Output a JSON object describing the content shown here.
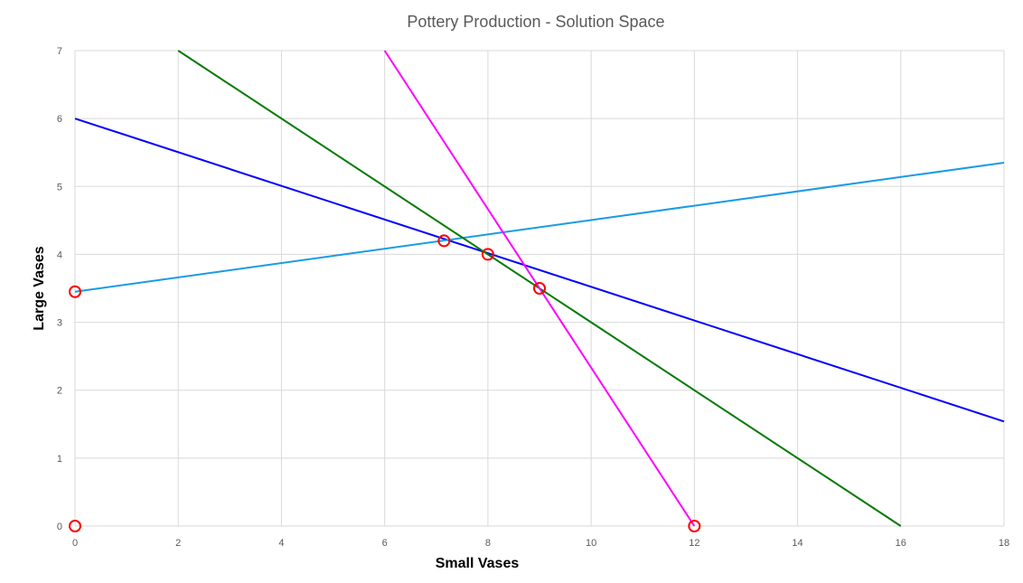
{
  "chart_data": {
    "type": "line",
    "title": "Pottery Production - Solution Space",
    "xlabel": "Small Vases",
    "ylabel": "Large Vases",
    "xlim": [
      0,
      18
    ],
    "ylim": [
      0,
      7
    ],
    "x_ticks": [
      "0",
      "2",
      "4",
      "6",
      "8",
      "10",
      "12",
      "14",
      "16",
      "18"
    ],
    "y_ticks": [
      "0",
      "1",
      "2",
      "3",
      "4",
      "5",
      "6",
      "7"
    ],
    "grid": true,
    "legend": "none",
    "series": [
      {
        "color": "#0000ff",
        "points": [
          [
            0,
            6
          ],
          [
            18,
            1.54
          ]
        ]
      },
      {
        "color": "#1a9be6",
        "points": [
          [
            0,
            3.45
          ],
          [
            18,
            5.35
          ]
        ]
      },
      {
        "color": "#007a00",
        "points": [
          [
            2,
            7
          ],
          [
            16,
            0
          ]
        ]
      },
      {
        "color": "#ff00ff",
        "points": [
          [
            6,
            7
          ],
          [
            12,
            0
          ]
        ]
      }
    ],
    "markers": {
      "color": "#ff0000",
      "points": [
        [
          0,
          0
        ],
        [
          0,
          3.45
        ],
        [
          7.15,
          4.2
        ],
        [
          8,
          4
        ],
        [
          9,
          3.5
        ],
        [
          12,
          0
        ]
      ]
    }
  }
}
